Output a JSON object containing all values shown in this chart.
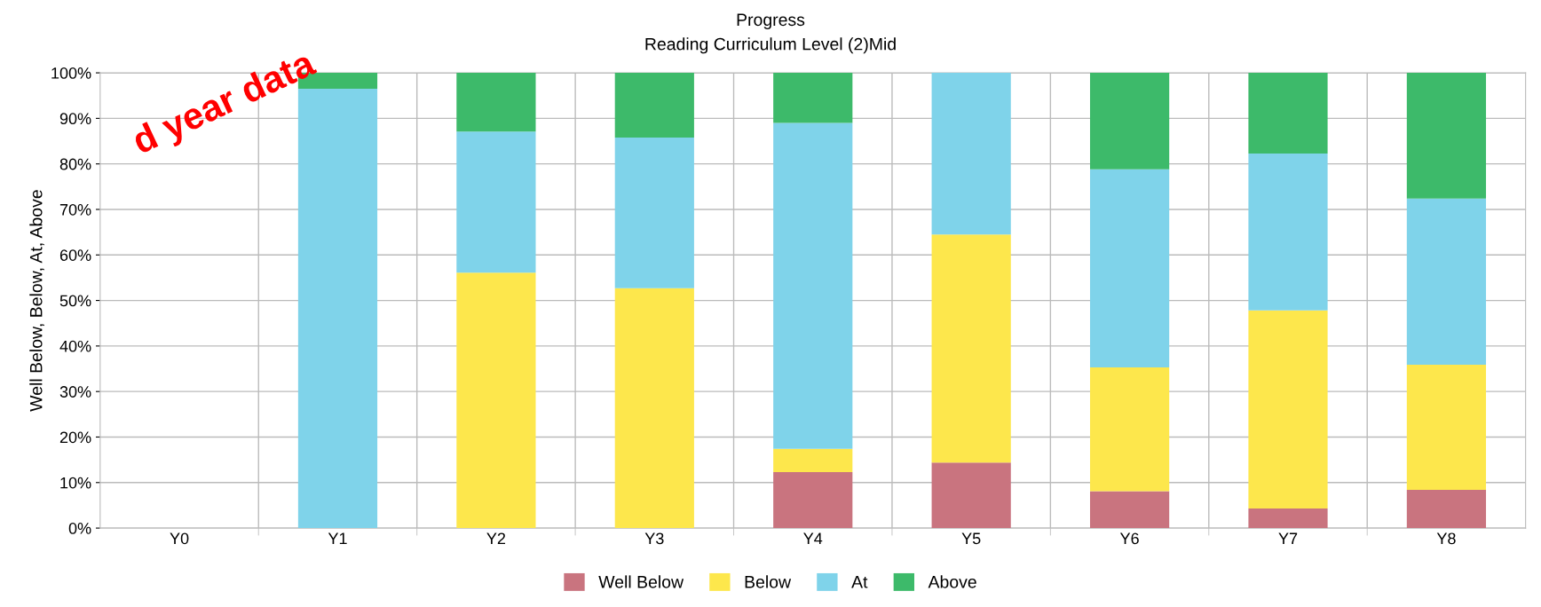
{
  "chart_data": {
    "type": "bar",
    "title": "Progress",
    "subtitle": "Reading Curriculum Level (2)Mid",
    "ylabel": "Well Below, Below, At, Above",
    "categories": [
      "Y0",
      "Y1",
      "Y2",
      "Y3",
      "Y4",
      "Y5",
      "Y6",
      "Y7",
      "Y8"
    ],
    "stacked": true,
    "series": [
      {
        "name": "Well Below",
        "color": "#c9747f",
        "values": [
          0,
          0,
          0,
          0,
          12.3,
          14.4,
          8.1,
          4.3,
          8.4
        ]
      },
      {
        "name": "Below",
        "color": "#fde74c",
        "values": [
          0,
          0,
          56.1,
          52.7,
          5.1,
          50.1,
          27.2,
          43.5,
          27.5
        ]
      },
      {
        "name": "At",
        "color": "#7fd3ea",
        "values": [
          0,
          96.5,
          31.0,
          33.1,
          71.6,
          35.5,
          43.5,
          34.5,
          36.5
        ]
      },
      {
        "name": "Above",
        "color": "#3dba6a",
        "values": [
          0,
          3.5,
          12.9,
          14.2,
          11.0,
          0,
          21.2,
          17.7,
          27.6
        ]
      }
    ],
    "ylim": [
      0,
      100
    ],
    "yticks": [
      {
        "value": 0,
        "label": "0%"
      },
      {
        "value": 10,
        "label": "10%"
      },
      {
        "value": 20,
        "label": "20%"
      },
      {
        "value": 30,
        "label": "30%"
      },
      {
        "value": 40,
        "label": "40%"
      },
      {
        "value": 50,
        "label": "50%"
      },
      {
        "value": 60,
        "label": "60%"
      },
      {
        "value": 70,
        "label": "70%"
      },
      {
        "value": 80,
        "label": "80%"
      },
      {
        "value": 90,
        "label": "90%"
      },
      {
        "value": 100,
        "label": "100%"
      }
    ],
    "grid": true,
    "legend": "bottom",
    "annotations": [
      "d year data"
    ]
  }
}
